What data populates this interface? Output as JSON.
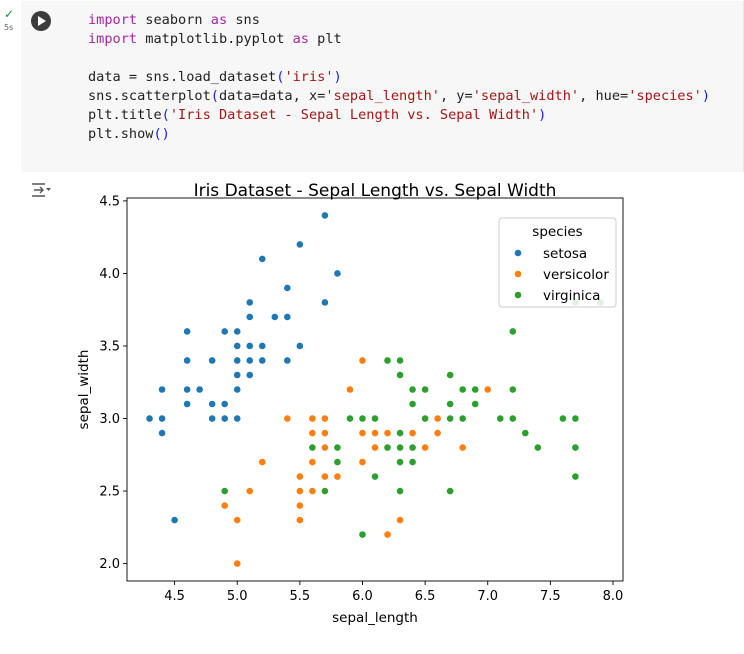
{
  "cell": {
    "exec_status": "✓",
    "exec_time": "5s",
    "code": [
      [
        {
          "t": "kw",
          "v": "import"
        },
        {
          "t": "p",
          "v": " seaborn "
        },
        {
          "t": "kw",
          "v": "as"
        },
        {
          "t": "p",
          "v": " sns"
        }
      ],
      [
        {
          "t": "kw",
          "v": "import"
        },
        {
          "t": "p",
          "v": " matplotlib.pyplot "
        },
        {
          "t": "kw",
          "v": "as"
        },
        {
          "t": "p",
          "v": " plt"
        }
      ],
      [],
      [
        {
          "t": "p",
          "v": "data = sns.load_dataset"
        },
        {
          "t": "br",
          "v": "("
        },
        {
          "t": "str",
          "v": "'iris'"
        },
        {
          "t": "br",
          "v": ")"
        }
      ],
      [
        {
          "t": "p",
          "v": "sns.scatterplot"
        },
        {
          "t": "br",
          "v": "("
        },
        {
          "t": "p",
          "v": "data=data, x="
        },
        {
          "t": "str",
          "v": "'sepal_length'"
        },
        {
          "t": "p",
          "v": ", y="
        },
        {
          "t": "str",
          "v": "'sepal_width'"
        },
        {
          "t": "p",
          "v": ", hue="
        },
        {
          "t": "str",
          "v": "'species'"
        },
        {
          "t": "br",
          "v": ")"
        }
      ],
      [
        {
          "t": "p",
          "v": "plt.title"
        },
        {
          "t": "br",
          "v": "("
        },
        {
          "t": "str",
          "v": "'Iris Dataset - Sepal Length vs. Sepal Width'"
        },
        {
          "t": "br",
          "v": ")"
        }
      ],
      [
        {
          "t": "p",
          "v": "plt.show"
        },
        {
          "t": "br",
          "v": "()"
        }
      ]
    ]
  },
  "chart_data": {
    "type": "scatter",
    "title": "Iris Dataset - Sepal Length vs. Sepal Width",
    "xlabel": "sepal_length",
    "ylabel": "sepal_width",
    "xlim": [
      4.12,
      8.08
    ],
    "ylim": [
      1.88,
      4.52
    ],
    "xticks": [
      "4.5",
      "5.0",
      "5.5",
      "6.0",
      "6.5",
      "7.0",
      "7.5",
      "8.0"
    ],
    "yticks": [
      "2.0",
      "2.5",
      "3.0",
      "3.5",
      "4.0",
      "4.5"
    ],
    "legend": {
      "title": "species",
      "position": "top-right"
    },
    "series": [
      {
        "name": "setosa",
        "color": "#1f77b4",
        "points": [
          [
            5.1,
            3.5
          ],
          [
            4.9,
            3.0
          ],
          [
            4.7,
            3.2
          ],
          [
            4.6,
            3.1
          ],
          [
            5.0,
            3.6
          ],
          [
            5.4,
            3.9
          ],
          [
            4.6,
            3.4
          ],
          [
            5.0,
            3.4
          ],
          [
            4.4,
            2.9
          ],
          [
            4.9,
            3.1
          ],
          [
            5.4,
            3.7
          ],
          [
            4.8,
            3.4
          ],
          [
            4.8,
            3.0
          ],
          [
            4.3,
            3.0
          ],
          [
            5.8,
            4.0
          ],
          [
            5.7,
            4.4
          ],
          [
            5.4,
            3.9
          ],
          [
            5.1,
            3.5
          ],
          [
            5.7,
            3.8
          ],
          [
            5.1,
            3.8
          ],
          [
            5.4,
            3.4
          ],
          [
            5.1,
            3.7
          ],
          [
            4.6,
            3.6
          ],
          [
            5.1,
            3.3
          ],
          [
            4.8,
            3.4
          ],
          [
            5.0,
            3.0
          ],
          [
            5.0,
            3.4
          ],
          [
            5.2,
            3.5
          ],
          [
            5.2,
            3.4
          ],
          [
            4.7,
            3.2
          ],
          [
            4.8,
            3.1
          ],
          [
            5.4,
            3.4
          ],
          [
            5.2,
            4.1
          ],
          [
            5.5,
            4.2
          ],
          [
            4.9,
            3.1
          ],
          [
            5.0,
            3.2
          ],
          [
            5.5,
            3.5
          ],
          [
            4.9,
            3.6
          ],
          [
            4.4,
            3.0
          ],
          [
            5.1,
            3.4
          ],
          [
            5.0,
            3.5
          ],
          [
            4.5,
            2.3
          ],
          [
            4.4,
            3.2
          ],
          [
            5.0,
            3.5
          ],
          [
            5.1,
            3.8
          ],
          [
            4.8,
            3.0
          ],
          [
            5.1,
            3.8
          ],
          [
            4.6,
            3.2
          ],
          [
            5.3,
            3.7
          ],
          [
            5.0,
            3.3
          ]
        ]
      },
      {
        "name": "versicolor",
        "color": "#ff7f0e",
        "points": [
          [
            7.0,
            3.2
          ],
          [
            6.4,
            3.2
          ],
          [
            6.9,
            3.1
          ],
          [
            5.5,
            2.3
          ],
          [
            6.5,
            2.8
          ],
          [
            5.7,
            2.8
          ],
          [
            6.3,
            3.3
          ],
          [
            4.9,
            2.4
          ],
          [
            6.6,
            2.9
          ],
          [
            5.2,
            2.7
          ],
          [
            5.0,
            2.0
          ],
          [
            5.9,
            3.0
          ],
          [
            6.0,
            2.2
          ],
          [
            6.1,
            2.9
          ],
          [
            5.6,
            2.9
          ],
          [
            6.7,
            3.1
          ],
          [
            5.6,
            3.0
          ],
          [
            5.8,
            2.7
          ],
          [
            6.2,
            2.2
          ],
          [
            5.6,
            2.5
          ],
          [
            5.9,
            3.2
          ],
          [
            6.1,
            2.8
          ],
          [
            6.3,
            2.5
          ],
          [
            6.1,
            2.8
          ],
          [
            6.4,
            2.9
          ],
          [
            6.6,
            3.0
          ],
          [
            6.8,
            2.8
          ],
          [
            6.7,
            3.0
          ],
          [
            6.0,
            2.9
          ],
          [
            5.7,
            2.6
          ],
          [
            5.5,
            2.4
          ],
          [
            5.5,
            2.4
          ],
          [
            5.8,
            2.7
          ],
          [
            6.0,
            2.7
          ],
          [
            5.4,
            3.0
          ],
          [
            6.0,
            3.4
          ],
          [
            6.7,
            3.1
          ],
          [
            6.3,
            2.3
          ],
          [
            5.6,
            3.0
          ],
          [
            5.5,
            2.5
          ],
          [
            5.5,
            2.6
          ],
          [
            6.1,
            3.0
          ],
          [
            5.8,
            2.6
          ],
          [
            5.0,
            2.3
          ],
          [
            5.6,
            2.7
          ],
          [
            5.7,
            3.0
          ],
          [
            5.7,
            2.9
          ],
          [
            6.2,
            2.9
          ],
          [
            5.1,
            2.5
          ],
          [
            5.7,
            2.8
          ]
        ]
      },
      {
        "name": "virginica",
        "color": "#2ca02c",
        "points": [
          [
            6.3,
            3.3
          ],
          [
            5.8,
            2.7
          ],
          [
            7.1,
            3.0
          ],
          [
            6.3,
            2.9
          ],
          [
            6.5,
            3.0
          ],
          [
            7.6,
            3.0
          ],
          [
            4.9,
            2.5
          ],
          [
            7.3,
            2.9
          ],
          [
            6.7,
            2.5
          ],
          [
            7.2,
            3.6
          ],
          [
            6.5,
            3.2
          ],
          [
            6.4,
            2.7
          ],
          [
            6.8,
            3.0
          ],
          [
            5.7,
            2.5
          ],
          [
            5.8,
            2.8
          ],
          [
            6.4,
            3.2
          ],
          [
            6.5,
            3.0
          ],
          [
            7.7,
            3.8
          ],
          [
            7.7,
            2.6
          ],
          [
            6.0,
            2.2
          ],
          [
            6.9,
            3.2
          ],
          [
            5.6,
            2.8
          ],
          [
            7.7,
            2.8
          ],
          [
            6.3,
            2.7
          ],
          [
            6.7,
            3.3
          ],
          [
            7.2,
            3.2
          ],
          [
            6.2,
            2.8
          ],
          [
            6.1,
            3.0
          ],
          [
            6.4,
            2.8
          ],
          [
            7.2,
            3.0
          ],
          [
            7.4,
            2.8
          ],
          [
            7.9,
            3.8
          ],
          [
            6.4,
            2.8
          ],
          [
            6.3,
            2.8
          ],
          [
            6.1,
            2.6
          ],
          [
            7.7,
            3.0
          ],
          [
            6.3,
            3.4
          ],
          [
            6.4,
            3.1
          ],
          [
            6.0,
            3.0
          ],
          [
            6.9,
            3.1
          ],
          [
            6.7,
            3.1
          ],
          [
            6.9,
            3.1
          ],
          [
            5.8,
            2.7
          ],
          [
            6.8,
            3.2
          ],
          [
            6.7,
            3.3
          ],
          [
            6.7,
            3.0
          ],
          [
            6.3,
            2.5
          ],
          [
            6.5,
            3.0
          ],
          [
            6.2,
            3.4
          ],
          [
            5.9,
            3.0
          ]
        ]
      }
    ]
  }
}
